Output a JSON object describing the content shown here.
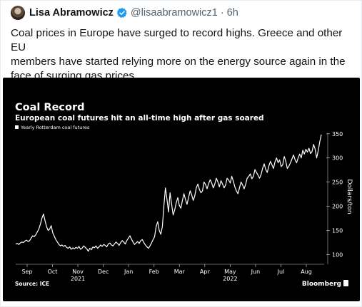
{
  "tweet": {
    "author_name": "Lisa Abramowicz",
    "handle": "@lisaabramowicz1",
    "separator": "·",
    "time": "6h",
    "text_lines": [
      "Coal prices in Europe have surged to record highs. Greece and other EU",
      "members have started relying more on the energy source again in the",
      "face of surging gas prices."
    ]
  },
  "chart_data": {
    "type": "line",
    "title": "Coal Record",
    "subtitle": "European coal futures hit an all-time high after gas soared",
    "legend": "Yearly Rotterdam coal futures",
    "x_ticks": [
      "Sep",
      "Oct",
      "Nov",
      "Dec",
      "Jan",
      "Feb",
      "Mar",
      "Apr",
      "May",
      "Jun",
      "Jul",
      "Aug"
    ],
    "year_labels": [
      {
        "label": "2021",
        "tick_index": 2
      },
      {
        "label": "2022",
        "tick_index": 8
      }
    ],
    "ylabel": "Dollars/ton",
    "y_ticks": [
      100,
      150,
      200,
      250,
      300,
      350
    ],
    "ylim": [
      80,
      360
    ],
    "source": "Source: ICE",
    "brand": "Bloomberg",
    "color": "#ffffff",
    "background": "#000000",
    "series": [
      {
        "values": [
          122,
          123,
          121,
          124,
          126,
          125,
          128,
          130,
          127,
          129,
          134,
          139,
          137,
          141,
          147,
          153,
          163,
          175,
          184,
          170,
          158,
          150,
          153,
          160,
          145,
          138,
          131,
          126,
          121,
          118,
          120,
          117,
          119,
          115,
          113,
          116,
          111,
          114,
          112,
          115,
          113,
          117,
          111,
          113,
          118,
          115,
          112,
          107,
          113,
          110,
          116,
          114,
          118,
          113,
          116,
          120,
          117,
          121,
          119,
          116,
          122,
          124,
          120,
          118,
          122,
          126,
          123,
          119,
          125,
          129,
          126,
          122,
          129,
          134,
          139,
          132,
          126,
          121,
          124,
          127,
          123,
          129,
          131,
          125,
          120,
          116,
          113,
          118,
          124,
          131,
          137,
          158,
          168,
          150,
          142,
          158,
          200,
          238,
          215,
          188,
          228,
          205,
          182,
          192,
          207,
          218,
          202,
          196,
          212,
          226,
          214,
          204,
          218,
          232,
          224,
          212,
          221,
          238,
          246,
          235,
          228,
          232,
          250,
          245,
          236,
          247,
          255,
          248,
          238,
          246,
          258,
          250,
          240,
          253,
          246,
          238,
          244,
          258,
          254,
          248,
          262,
          252,
          240,
          232,
          226,
          238,
          250,
          244,
          236,
          246,
          258,
          262,
          267,
          257,
          262,
          276,
          270,
          264,
          258,
          266,
          279,
          288,
          276,
          270,
          283,
          293,
          286,
          278,
          292,
          300,
          290,
          296,
          282,
          286,
          303,
          293,
          278,
          283,
          290,
          298,
          306,
          296,
          290,
          300,
          308,
          300,
          316,
          308,
          318,
          312,
          320,
          309,
          313,
          328,
          318,
          300,
          315,
          333,
          348
        ]
      }
    ]
  }
}
